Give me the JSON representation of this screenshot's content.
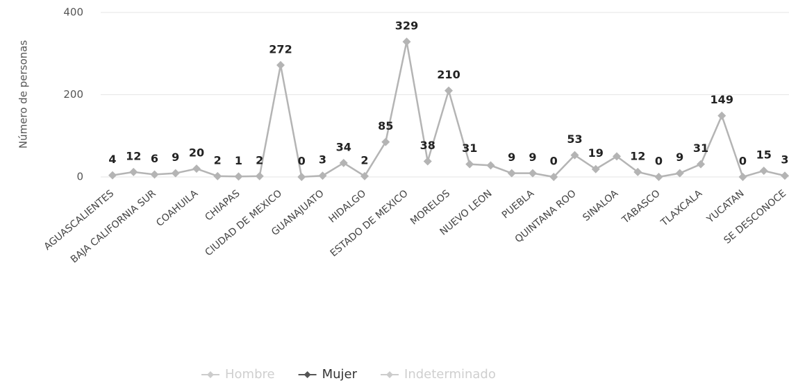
{
  "chart_data": {
    "type": "line",
    "y_label": "Número de personas",
    "categories": [
      "AGUASCALIENTES",
      null,
      "BAJA CALIFORNIA SUR",
      null,
      "COAHUILA",
      null,
      "CHIAPAS",
      null,
      "CIUDAD DE MEXICO",
      null,
      "GUANAJUATO",
      null,
      "HIDALGO",
      null,
      "ESTADO DE MEXICO",
      null,
      "MORELOS",
      null,
      "NUEVO LEON",
      null,
      "PUEBLA",
      null,
      "QUINTANA ROO",
      null,
      "SINALOA",
      null,
      "TABASCO",
      null,
      "TLAXCALA",
      null,
      "YUCATAN",
      null,
      "SE DESCONOCE"
    ],
    "series": [
      {
        "name": "Hombre",
        "color": "#d8d8d8",
        "hidden": true
      },
      {
        "name": "Mujer",
        "color": "#b4b4b4",
        "values": [
          4,
          12,
          6,
          9,
          20,
          2,
          1,
          2,
          272,
          0,
          3,
          34,
          2,
          85,
          329,
          38,
          210,
          31,
          28,
          9,
          9,
          0,
          53,
          19,
          50,
          12,
          0,
          9,
          31,
          149,
          0,
          15,
          3
        ],
        "value_labels": [
          "4",
          "12",
          "6",
          "9",
          "20",
          "2",
          "1",
          "2",
          "272",
          "0",
          "3",
          "34",
          "2",
          "85",
          "329",
          "38",
          "210",
          "31",
          null,
          "9",
          "9",
          "0",
          "53",
          "19",
          null,
          "12",
          "0",
          "9",
          "31",
          "149",
          "0",
          "15",
          "3"
        ]
      },
      {
        "name": "Indeterminado",
        "color": "#d8d8d8",
        "hidden": true
      }
    ],
    "ylim": [
      0,
      400
    ],
    "yticks": [
      0,
      200,
      400
    ],
    "grid": true
  }
}
